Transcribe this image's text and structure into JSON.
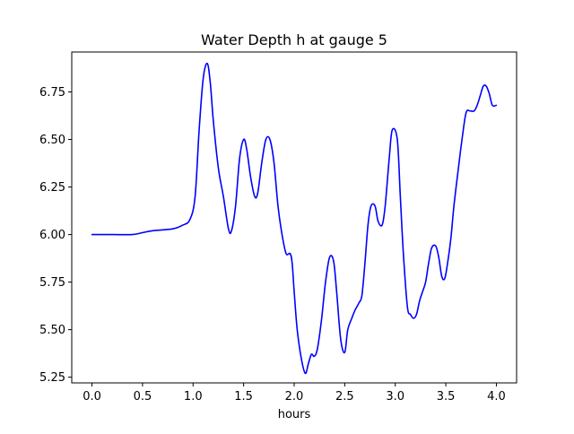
{
  "chart_data": {
    "type": "line",
    "title": "Water Depth h at gauge 5",
    "xlabel": "hours",
    "ylabel": "",
    "xlim": [
      -0.2,
      4.2
    ],
    "ylim": [
      5.22,
      6.96
    ],
    "xticks": [
      0.0,
      0.5,
      1.0,
      1.5,
      2.0,
      2.5,
      3.0,
      3.5,
      4.0
    ],
    "xtick_labels": [
      "0.0",
      "0.5",
      "1.0",
      "1.5",
      "2.0",
      "2.5",
      "3.0",
      "3.5",
      "4.0"
    ],
    "yticks": [
      5.25,
      5.5,
      5.75,
      6.0,
      6.25,
      6.5,
      6.75
    ],
    "ytick_labels": [
      "5.25",
      "5.50",
      "5.75",
      "6.00",
      "6.25",
      "6.50",
      "6.75"
    ],
    "grid": false,
    "series": [
      {
        "color": "#0000ff",
        "x": [
          0.0,
          0.2,
          0.4,
          0.5,
          0.6,
          0.8,
          0.9,
          0.97,
          1.02,
          1.06,
          1.1,
          1.14,
          1.17,
          1.2,
          1.25,
          1.3,
          1.35,
          1.38,
          1.42,
          1.46,
          1.5,
          1.53,
          1.57,
          1.61,
          1.64,
          1.68,
          1.72,
          1.76,
          1.8,
          1.84,
          1.88,
          1.92,
          1.96,
          1.98,
          2.0,
          2.03,
          2.07,
          2.11,
          2.14,
          2.17,
          2.2,
          2.23,
          2.27,
          2.31,
          2.35,
          2.39,
          2.42,
          2.46,
          2.5,
          2.53,
          2.57,
          2.6,
          2.64,
          2.67,
          2.7,
          2.73,
          2.76,
          2.8,
          2.83,
          2.87,
          2.9,
          2.94,
          2.97,
          3.02,
          3.05,
          3.08,
          3.12,
          3.15,
          3.18,
          3.21,
          3.24,
          3.27,
          3.3,
          3.33,
          3.36,
          3.4,
          3.43,
          3.46,
          3.49,
          3.52,
          3.55,
          3.58,
          3.62,
          3.66,
          3.7,
          3.74,
          3.78,
          3.81,
          3.84,
          3.87,
          3.9,
          3.93,
          3.96,
          4.0
        ],
        "y": [
          6.0,
          6.0,
          6.0,
          6.01,
          6.02,
          6.03,
          6.05,
          6.08,
          6.2,
          6.55,
          6.82,
          6.9,
          6.8,
          6.6,
          6.35,
          6.2,
          6.03,
          6.02,
          6.15,
          6.4,
          6.5,
          6.45,
          6.3,
          6.2,
          6.22,
          6.38,
          6.5,
          6.5,
          6.38,
          6.15,
          6.0,
          5.9,
          5.9,
          5.85,
          5.7,
          5.5,
          5.35,
          5.27,
          5.32,
          5.37,
          5.36,
          5.4,
          5.55,
          5.75,
          5.88,
          5.86,
          5.7,
          5.45,
          5.38,
          5.5,
          5.56,
          5.6,
          5.64,
          5.68,
          5.85,
          6.05,
          6.15,
          6.15,
          6.07,
          6.05,
          6.15,
          6.4,
          6.55,
          6.5,
          6.2,
          5.9,
          5.62,
          5.58,
          5.56,
          5.58,
          5.65,
          5.7,
          5.75,
          5.85,
          5.93,
          5.94,
          5.88,
          5.78,
          5.77,
          5.86,
          5.98,
          6.15,
          6.33,
          6.5,
          6.64,
          6.65,
          6.65,
          6.68,
          6.73,
          6.78,
          6.78,
          6.74,
          6.68,
          6.68
        ]
      }
    ]
  }
}
